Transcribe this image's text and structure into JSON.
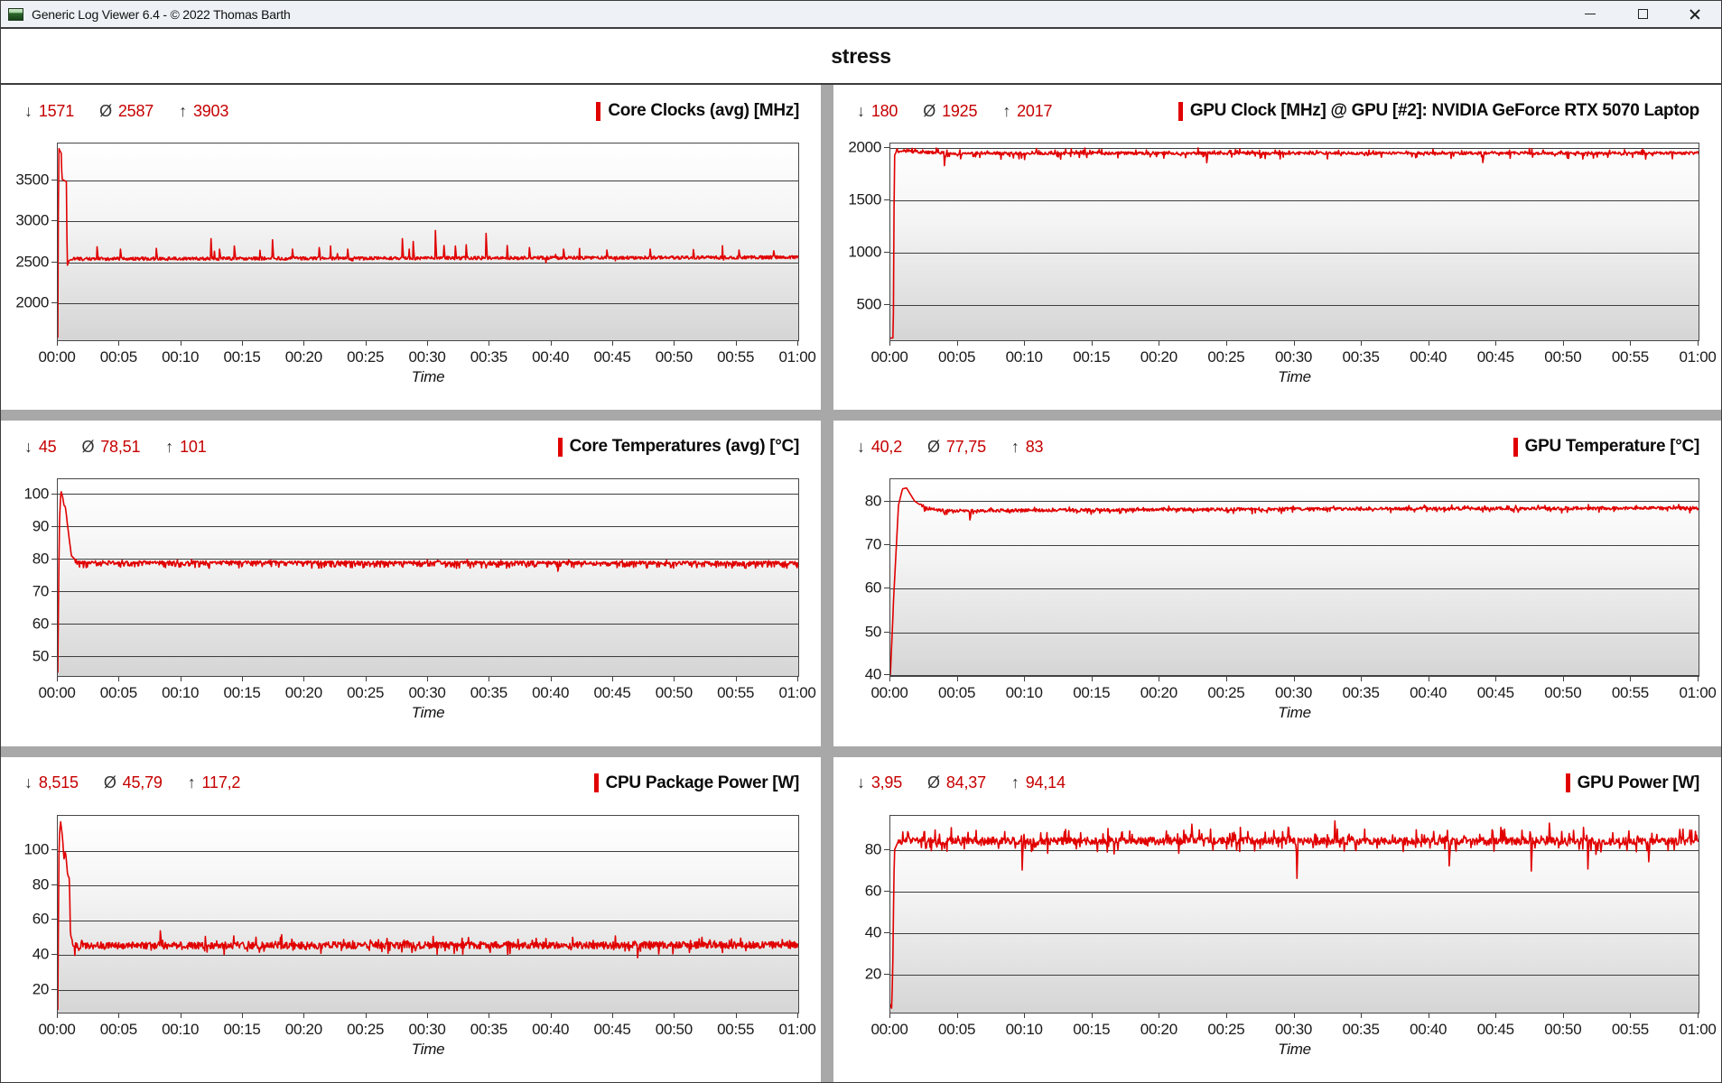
{
  "window": {
    "title": "Generic Log Viewer 6.4 - © 2022 Thomas Barth"
  },
  "header": {
    "title": "stress"
  },
  "stat_symbols": {
    "min": "↓",
    "avg": "Ø",
    "max": "↑"
  },
  "colors": {
    "accent_red": "#e10000",
    "stat_number_red": "#c60000",
    "grid_line": "#3e3e3e",
    "plot_border": "#474747",
    "divider_gray": "#a8a8a8",
    "titlebar_bg": "#eef2f7"
  },
  "axis": {
    "x_label": "Time",
    "x_ticks": [
      "00:00",
      "00:05",
      "00:10",
      "00:15",
      "00:20",
      "00:25",
      "00:30",
      "00:35",
      "00:40",
      "00:45",
      "00:50",
      "00:55",
      "01:00"
    ]
  },
  "chart_data": [
    {
      "type": "line",
      "title": "Core Clocks (avg) [MHz]",
      "stats": {
        "min": "1571",
        "avg": "2587",
        "max": "3903"
      },
      "unit": "MHz",
      "color": "#e10000",
      "ylim": [
        1540,
        3960
      ],
      "yticks": [
        2000,
        2500,
        3000,
        3500
      ],
      "x_minutes": [
        0,
        60
      ],
      "keypoints": [
        [
          0,
          1571
        ],
        [
          0.07,
          3903
        ],
        [
          0.28,
          3840
        ],
        [
          0.34,
          3520
        ],
        [
          0.7,
          3490
        ],
        [
          0.76,
          2450
        ],
        [
          0.9,
          2520
        ],
        [
          1.2,
          2540
        ],
        [
          60,
          2560
        ]
      ],
      "noise": {
        "amp": 20,
        "from": 1.1,
        "p_up": 0.015,
        "up": 170,
        "p_down": 0.01,
        "down": 40
      },
      "spikes": [
        [
          3.2,
          2690
        ],
        [
          5.1,
          2660
        ],
        [
          8.0,
          2670
        ],
        [
          12.4,
          2790
        ],
        [
          13.1,
          2660
        ],
        [
          14.3,
          2700
        ],
        [
          17.4,
          2775
        ],
        [
          19.0,
          2660
        ],
        [
          21.2,
          2680
        ],
        [
          23.5,
          2660
        ],
        [
          27.9,
          2790
        ],
        [
          28.8,
          2755
        ],
        [
          30.6,
          2890
        ],
        [
          31.3,
          2705
        ],
        [
          32.2,
          2700
        ],
        [
          33.1,
          2715
        ],
        [
          34.7,
          2855
        ],
        [
          36.4,
          2705
        ],
        [
          38.2,
          2680
        ],
        [
          41.0,
          2660
        ],
        [
          44.5,
          2650
        ],
        [
          48.0,
          2660
        ],
        [
          51.5,
          2655
        ],
        [
          55.2,
          2650
        ],
        [
          58.0,
          2640
        ]
      ]
    },
    {
      "type": "line",
      "title": "GPU Clock [MHz] @ GPU [#2]: NVIDIA GeForce RTX 5070 Laptop",
      "stats": {
        "min": "180",
        "avg": "1925",
        "max": "2017"
      },
      "unit": "MHz",
      "color": "#e10000",
      "ylim": [
        160,
        2042
      ],
      "yticks": [
        500,
        1000,
        1500,
        2000
      ],
      "x_minutes": [
        0,
        60
      ],
      "keypoints": [
        [
          0,
          180
        ],
        [
          0.22,
          182
        ],
        [
          0.3,
          1925
        ],
        [
          0.5,
          1978
        ],
        [
          2,
          1962
        ],
        [
          5,
          1948
        ],
        [
          60,
          1950
        ]
      ],
      "noise": {
        "amp": 14,
        "from": 0.45,
        "p_up": 0.07,
        "up": 42,
        "p_down": 0.07,
        "down": 48
      },
      "spikes": [
        [
          4.0,
          1830
        ],
        [
          23.5,
          1858
        ],
        [
          44.0,
          1860
        ]
      ]
    },
    {
      "type": "line",
      "title": "Core Temperatures (avg) [°C]",
      "stats": {
        "min": "45",
        "avg": "78,51",
        "max": "101"
      },
      "unit": "°C",
      "color": "#e10000",
      "ylim": [
        44,
        104.5
      ],
      "yticks": [
        50,
        60,
        70,
        80,
        90,
        100
      ],
      "x_minutes": [
        0,
        60
      ],
      "keypoints": [
        [
          0,
          45
        ],
        [
          0.12,
          90
        ],
        [
          0.25,
          101
        ],
        [
          0.4,
          99
        ],
        [
          0.5,
          96.5
        ],
        [
          0.62,
          96
        ],
        [
          0.8,
          90
        ],
        [
          1.1,
          81
        ],
        [
          1.6,
          79
        ],
        [
          60,
          78.8
        ]
      ],
      "noise": {
        "amp": 0.45,
        "from": 1.4,
        "p_up": 0.05,
        "up": 0.5,
        "p_down": 0.3,
        "down": 1.4
      },
      "spikes": [
        [
          40.5,
          76.2
        ]
      ]
    },
    {
      "type": "line",
      "title": "GPU Temperature [°C]",
      "stats": {
        "min": "40,2",
        "avg": "77,75",
        "max": "83"
      },
      "unit": "°C",
      "color": "#e10000",
      "ylim": [
        40,
        85
      ],
      "yticks": [
        40,
        50,
        60,
        70,
        80
      ],
      "x_minutes": [
        0,
        60
      ],
      "keypoints": [
        [
          0,
          40.2
        ],
        [
          0.25,
          58
        ],
        [
          0.6,
          79
        ],
        [
          0.9,
          82.8
        ],
        [
          1.2,
          83
        ],
        [
          1.8,
          80
        ],
        [
          2.6,
          78.3
        ],
        [
          4,
          77.8
        ],
        [
          30,
          78.2
        ],
        [
          60,
          78.4
        ]
      ],
      "noise": {
        "amp": 0.35,
        "from": 2.2,
        "p_up": 0.06,
        "up": 0.6,
        "p_down": 0.1,
        "down": 0.8
      },
      "spikes": [
        [
          5.9,
          75.7
        ]
      ]
    },
    {
      "type": "line",
      "title": "CPU Package Power [W]",
      "stats": {
        "min": "8,515",
        "avg": "45,79",
        "max": "117,2"
      },
      "unit": "W",
      "color": "#e10000",
      "ylim": [
        7,
        120
      ],
      "yticks": [
        20,
        40,
        60,
        80,
        100
      ],
      "x_minutes": [
        0,
        60
      ],
      "keypoints": [
        [
          0,
          8.5
        ],
        [
          0.1,
          105
        ],
        [
          0.22,
          117.2
        ],
        [
          0.38,
          108
        ],
        [
          0.5,
          95
        ],
        [
          0.62,
          100
        ],
        [
          0.8,
          86
        ],
        [
          0.95,
          84
        ],
        [
          1.02,
          52
        ],
        [
          1.3,
          45.5
        ],
        [
          60,
          45.8
        ]
      ],
      "noise": {
        "amp": 2.0,
        "from": 1.2,
        "p_up": 0.05,
        "up": 4.5,
        "p_down": 0.05,
        "down": 4.0
      },
      "spikes": [
        [
          8.3,
          54
        ],
        [
          47.0,
          38.5
        ]
      ]
    },
    {
      "type": "line",
      "title": "GPU Power [W]",
      "stats": {
        "min": "3,95",
        "avg": "84,37",
        "max": "94,14"
      },
      "unit": "W",
      "color": "#e10000",
      "ylim": [
        2,
        96.5
      ],
      "yticks": [
        20,
        40,
        60,
        80
      ],
      "x_minutes": [
        0,
        60
      ],
      "keypoints": [
        [
          0,
          6
        ],
        [
          0.1,
          3.95
        ],
        [
          0.18,
          25
        ],
        [
          0.3,
          80
        ],
        [
          0.6,
          84.5
        ],
        [
          60,
          84.3
        ]
      ],
      "noise": {
        "amp": 1.8,
        "from": 0.6,
        "p_up": 0.1,
        "up": 5.5,
        "p_down": 0.07,
        "down": 5.0
      },
      "spikes": [
        [
          9.8,
          70.5
        ],
        [
          22.4,
          92.5
        ],
        [
          26.0,
          91
        ],
        [
          30.2,
          66.5
        ],
        [
          33.0,
          94.1
        ],
        [
          41.5,
          72.5
        ],
        [
          45.3,
          91
        ],
        [
          47.6,
          70
        ],
        [
          48.9,
          93
        ],
        [
          51.8,
          71
        ],
        [
          52.4,
          78
        ],
        [
          56.3,
          74.5
        ],
        [
          58.6,
          90
        ]
      ]
    }
  ]
}
